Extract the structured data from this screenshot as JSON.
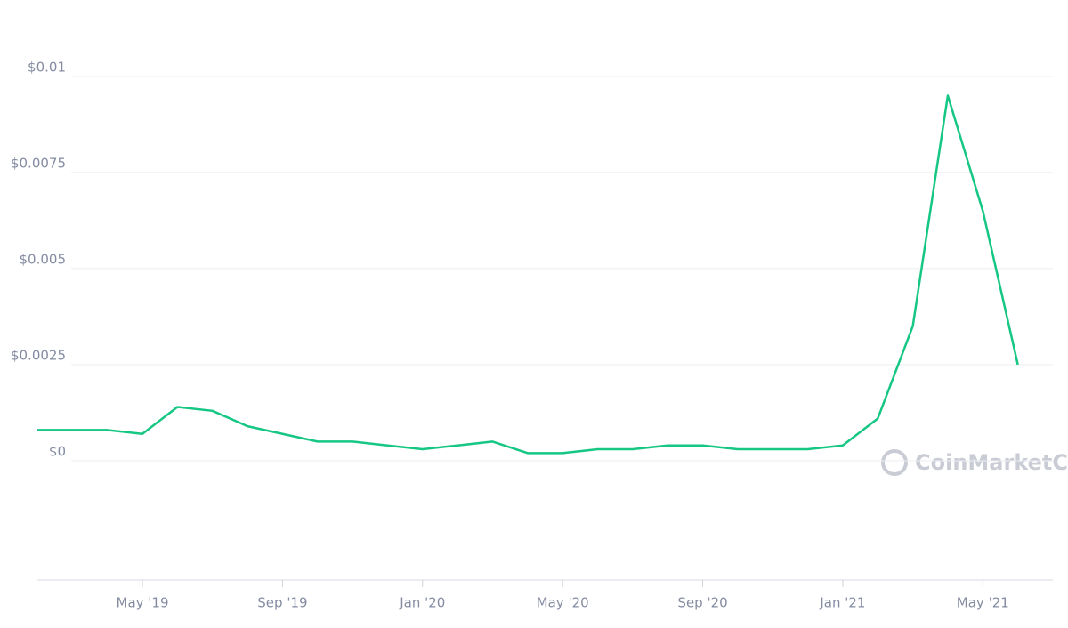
{
  "chart_data": {
    "type": "line",
    "x": [
      "2019-02",
      "2019-03",
      "2019-04",
      "2019-05",
      "2019-06",
      "2019-07",
      "2019-08",
      "2019-09",
      "2019-10",
      "2019-11",
      "2019-12",
      "2020-01",
      "2020-02",
      "2020-03",
      "2020-04",
      "2020-05",
      "2020-06",
      "2020-07",
      "2020-08",
      "2020-09",
      "2020-10",
      "2020-11",
      "2020-12",
      "2021-01",
      "2021-02",
      "2021-03",
      "2021-04",
      "2021-05",
      "2021-06"
    ],
    "series": [
      {
        "color": "#16c784",
        "values": [
          0.0008,
          0.0008,
          0.0008,
          0.0007,
          0.0014,
          0.0013,
          0.0009,
          0.0007,
          0.0005,
          0.0005,
          0.0004,
          0.0003,
          0.0004,
          0.0005,
          0.0002,
          0.0002,
          0.0003,
          0.0003,
          0.0004,
          0.0004,
          0.0003,
          0.0003,
          0.0003,
          0.0004,
          0.0011,
          0.0035,
          0.0095,
          0.0065,
          0.0025
        ]
      }
    ],
    "xlim": [
      "2019-02",
      "2021-07"
    ],
    "xticks": [
      {
        "value": "2019-05",
        "label": "May '19"
      },
      {
        "value": "2019-09",
        "label": "Sep '19"
      },
      {
        "value": "2020-01",
        "label": "Jan '20"
      },
      {
        "value": "2020-05",
        "label": "May '20"
      },
      {
        "value": "2020-09",
        "label": "Sep '20"
      },
      {
        "value": "2021-01",
        "label": "Jan '21"
      },
      {
        "value": "2021-05",
        "label": "May '21"
      }
    ],
    "ylim": [
      0,
      0.0115
    ],
    "yticks": [
      {
        "value": 0,
        "label": "$0"
      },
      {
        "value": 0.0025,
        "label": "$0.0025"
      },
      {
        "value": 0.005,
        "label": "$0.005"
      },
      {
        "value": 0.0075,
        "label": "$0.0075"
      },
      {
        "value": 0.01,
        "label": "$0.01"
      }
    ],
    "grid": true,
    "watermark": "CoinMarketCap"
  }
}
